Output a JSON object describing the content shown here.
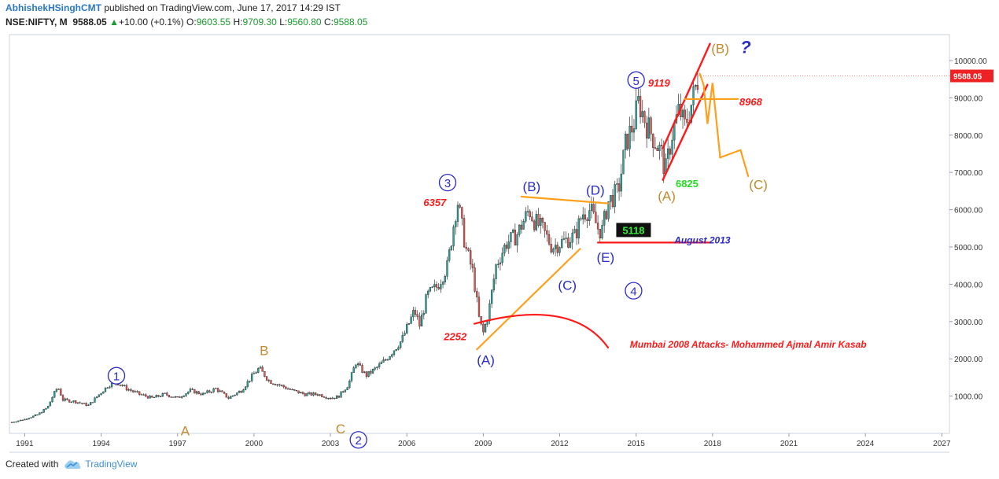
{
  "header": {
    "author": "AbhishekHSinghCMT",
    "published": " published on TradingView.com, June 17, 2017 14:29 IST",
    "symbol": "NSE:NIFTY, M",
    "last": "9588.05",
    "change_arrow": "▲",
    "change": "+10.00 (+0.1%)",
    "o_label": "O:",
    "o_value": "9603.55",
    "h_label": "H:",
    "h_value": "9709.30",
    "l_label": "L:",
    "l_value": "9560.80",
    "c_label": "C:",
    "c_value": "9588.05"
  },
  "footer": {
    "created_with": "Created with",
    "brand": "TradingView"
  },
  "colors": {
    "up": "#26a69a",
    "down": "#ef5350",
    "orange": "#ff9f1a",
    "red": "#ff1a1a",
    "blue": "#2a2ac8",
    "brown": "#c48a2e",
    "green": "#22cc22"
  },
  "chart_data": {
    "type": "candlestick",
    "x_ticks": [
      "1991",
      "1994",
      "1997",
      "2000",
      "2003",
      "2006",
      "2009",
      "2012",
      "2015",
      "2018",
      "2021",
      "2024",
      "2027"
    ],
    "y_ticks": [
      "1000.00",
      "2000.00",
      "3000.00",
      "4000.00",
      "5000.00",
      "6000.00",
      "7000.00",
      "8000.00",
      "9000.00",
      "10000.00"
    ],
    "price_label": "9588.05",
    "ylim": [
      0,
      10800
    ],
    "xlim": [
      1990.4,
      2027.3
    ],
    "closes_path": [
      [
        1990.5,
        300
      ],
      [
        1991.0,
        380
      ],
      [
        1991.5,
        500
      ],
      [
        1991.9,
        700
      ],
      [
        1992.1,
        1000
      ],
      [
        1992.3,
        1250
      ],
      [
        1992.5,
        900
      ],
      [
        1993.0,
        850
      ],
      [
        1993.5,
        750
      ],
      [
        1994.0,
        1100
      ],
      [
        1994.3,
        1300
      ],
      [
        1994.7,
        1350
      ],
      [
        1995.0,
        1200
      ],
      [
        1995.5,
        1050
      ],
      [
        1996.0,
        950
      ],
      [
        1996.5,
        1050
      ],
      [
        1997.0,
        950
      ],
      [
        1997.5,
        1150
      ],
      [
        1998.0,
        1050
      ],
      [
        1998.5,
        1200
      ],
      [
        1999.0,
        950
      ],
      [
        1999.5,
        1150
      ],
      [
        2000.0,
        1600
      ],
      [
        2000.2,
        1750
      ],
      [
        2000.6,
        1400
      ],
      [
        2001.0,
        1300
      ],
      [
        2001.5,
        1150
      ],
      [
        2002.0,
        1050
      ],
      [
        2002.5,
        1050
      ],
      [
        2003.0,
        950
      ],
      [
        2003.3,
        980
      ],
      [
        2003.7,
        1300
      ],
      [
        2004.0,
        1900
      ],
      [
        2004.4,
        1550
      ],
      [
        2004.8,
        1750
      ],
      [
        2005.2,
        2000
      ],
      [
        2005.8,
        2500
      ],
      [
        2006.3,
        3300
      ],
      [
        2006.5,
        2900
      ],
      [
        2006.8,
        3700
      ],
      [
        2007.2,
        3950
      ],
      [
        2007.6,
        4500
      ],
      [
        2007.9,
        5900
      ],
      [
        2008.0,
        6200
      ],
      [
        2008.3,
        5000
      ],
      [
        2008.6,
        4300
      ],
      [
        2008.85,
        3000
      ],
      [
        2009.0,
        2700
      ],
      [
        2009.2,
        3200
      ],
      [
        2009.5,
        4500
      ],
      [
        2009.9,
        5100
      ],
      [
        2010.3,
        5300
      ],
      [
        2010.8,
        6000
      ],
      [
        2011.0,
        5700
      ],
      [
        2011.3,
        5500
      ],
      [
        2011.7,
        5000
      ],
      [
        2012.0,
        5100
      ],
      [
        2012.3,
        5200
      ],
      [
        2012.6,
        5300
      ],
      [
        2012.9,
        5900
      ],
      [
        2013.2,
        6000
      ],
      [
        2013.5,
        5500
      ],
      [
        2013.65,
        5400
      ],
      [
        2013.9,
        6200
      ],
      [
        2014.3,
        6500
      ],
      [
        2014.6,
        7800
      ],
      [
        2014.9,
        8300
      ],
      [
        2015.1,
        8900
      ],
      [
        2015.4,
        8300
      ],
      [
        2015.7,
        7900
      ],
      [
        2016.0,
        7500
      ],
      [
        2016.15,
        7000
      ],
      [
        2016.4,
        8000
      ],
      [
        2016.7,
        8700
      ],
      [
        2016.9,
        8200
      ],
      [
        2017.2,
        8900
      ],
      [
        2017.45,
        9588
      ]
    ],
    "annotations": [
      {
        "text": "1",
        "type": "wave-circle",
        "x": 1994.6,
        "y": 1420,
        "color": "blue"
      },
      {
        "text": "2",
        "type": "wave-circle",
        "x": 2004.1,
        "y": -300,
        "color": "blue"
      },
      {
        "text": "3",
        "type": "wave-circle",
        "x": 2007.6,
        "y": 6600,
        "color": "blue"
      },
      {
        "text": "4",
        "type": "wave-circle",
        "x": 2014.9,
        "y": 3700,
        "color": "blue"
      },
      {
        "text": "5",
        "type": "wave-circle",
        "x": 2015.0,
        "y": 9350,
        "color": "blue"
      },
      {
        "text": "A",
        "type": "label",
        "x": 1997.3,
        "y": -50,
        "color": "brown"
      },
      {
        "text": "B",
        "type": "label",
        "x": 2000.4,
        "y": 2100,
        "color": "brown"
      },
      {
        "text": "C",
        "type": "label",
        "x": 2003.4,
        "y": 0,
        "color": "brown"
      },
      {
        "text": "(A)",
        "type": "label",
        "x": 2009.1,
        "y": 1850,
        "color": "blue"
      },
      {
        "text": "(B)",
        "type": "label",
        "x": 2010.9,
        "y": 6500,
        "color": "blue"
      },
      {
        "text": "(C)",
        "type": "label",
        "x": 2012.3,
        "y": 3850,
        "color": "blue"
      },
      {
        "text": "(D)",
        "type": "label",
        "x": 2013.4,
        "y": 6400,
        "color": "blue"
      },
      {
        "text": "(E)",
        "type": "label",
        "x": 2013.8,
        "y": 4600,
        "color": "blue"
      },
      {
        "text": "(A)",
        "type": "label",
        "x": 2016.2,
        "y": 6250,
        "color": "brown"
      },
      {
        "text": "(B)",
        "type": "label",
        "x": 2018.3,
        "y": 10200,
        "color": "brown"
      },
      {
        "text": "?",
        "type": "label-bold",
        "x": 2019.3,
        "y": 10200,
        "color": "blue"
      },
      {
        "text": "(C)",
        "type": "label",
        "x": 2019.8,
        "y": 6550,
        "color": "brown"
      },
      {
        "text": "6357",
        "type": "price",
        "x": 2007.1,
        "y": 6100,
        "color": "red"
      },
      {
        "text": "2252",
        "type": "price",
        "x": 2007.9,
        "y": 2500,
        "color": "red"
      },
      {
        "text": "9119",
        "type": "price",
        "x": 2015.9,
        "y": 9300,
        "color": "red"
      },
      {
        "text": "8968",
        "type": "price",
        "x": 2019.5,
        "y": 8800,
        "color": "red"
      },
      {
        "text": "6825",
        "type": "price-green",
        "x": 2017.0,
        "y": 6600,
        "color": "green"
      },
      {
        "text": "5118",
        "type": "price-box",
        "x": 2014.9,
        "y": 5350,
        "color": "green"
      },
      {
        "text": "August 2013",
        "type": "note",
        "x": 2017.6,
        "y": 5100,
        "color": "blue"
      },
      {
        "text": "Mumbai 2008 Attacks- Mohammed Ajmal Amir Kasab",
        "type": "note",
        "x": 2019.4,
        "y": 2300,
        "color": "red"
      }
    ]
  }
}
